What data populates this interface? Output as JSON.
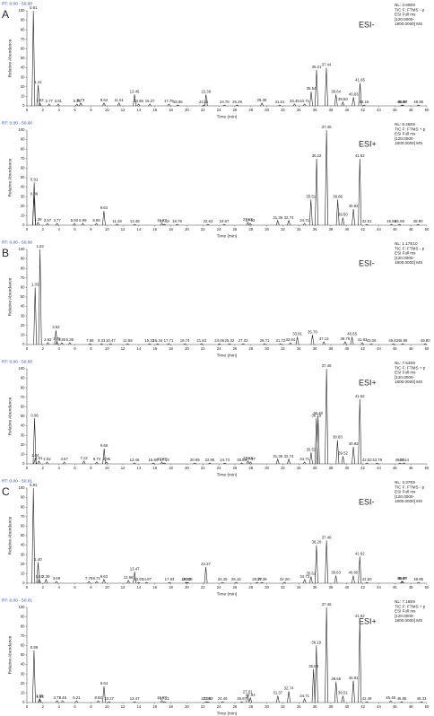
{
  "chart_data": [
    {
      "type": "line",
      "header": "RT: 0.00 - 50.00",
      "panel": "A",
      "mode": "ESI-",
      "info": [
        "NL: 3.60E9",
        "TIC F: FTMS - p",
        "ESI Full ms",
        "[120.0000-",
        "1800.0000]  MS"
      ],
      "y_label": "Relative Abundance",
      "x_label": "Time (min)",
      "color": "#222",
      "x": [
        0.81,
        1.41,
        1.62,
        2.77,
        3.91,
        6.25,
        6.73,
        9.64,
        11.51,
        13.46,
        13.96,
        15.37,
        17.75,
        18.86,
        22.11,
        22.39,
        24.7,
        26.29,
        29.38,
        31.61,
        33.45,
        34.71,
        35.54,
        36.21,
        37.44,
        38.64,
        39.5,
        40.83,
        41.65,
        42.16,
        46.88,
        46.97,
        48.95
      ],
      "values": [
        100,
        22,
        3,
        2,
        2,
        2,
        3,
        3,
        3,
        12,
        2,
        2,
        2,
        1,
        1,
        12,
        1,
        1,
        3,
        1,
        2,
        2,
        15,
        38,
        40,
        12,
        4,
        9,
        24,
        1,
        1,
        1,
        1
      ],
      "peak_labels": [
        "0.81",
        "1.41",
        "1.62",
        "2.77",
        "3.91",
        "6.25",
        "6.73",
        "9.64",
        "11.51",
        "13.46",
        "13.96",
        "15.37",
        "17.75",
        "18.86",
        "22.11",
        "22.39",
        "24.70",
        "26.29",
        "29.38",
        "31.61",
        "33.45",
        "34.71",
        "35.54",
        "36.21",
        "37.44",
        "38.64",
        "39.50",
        "40.83",
        "41.65",
        "42.16",
        "46.88",
        "46.97",
        "48.95"
      ],
      "xlim": [
        0,
        50
      ],
      "ylim": [
        0,
        100
      ],
      "xticks": [
        0,
        2,
        4,
        6,
        8,
        10,
        12,
        14,
        16,
        18,
        20,
        22,
        24,
        26,
        28,
        30,
        32,
        34,
        36,
        38,
        40,
        42,
        44,
        46,
        48,
        50
      ],
      "yticks": [
        0,
        10,
        20,
        30,
        40,
        50,
        60,
        70,
        80,
        90,
        100
      ]
    },
    {
      "type": "line",
      "header": "RT: 0.00 - 50.00",
      "mode": "ESI+",
      "info": [
        "NL: 8.46E9",
        "TIC F: FTMS + p",
        "ESI Full ms",
        "[120.0000-",
        "1800.0000]  MS"
      ],
      "y_label": "Relative Abundance",
      "x_label": "Time (min)",
      "color": "#222",
      "x": [
        0.91,
        0.89,
        1.39,
        2.57,
        3.77,
        5.93,
        6.99,
        8.69,
        9.63,
        11.28,
        13.48,
        16.87,
        17.19,
        18.78,
        22.63,
        24.67,
        27.62,
        27.92,
        31.36,
        32.74,
        34.71,
        35.51,
        36.22,
        37.46,
        38.86,
        39.5,
        40.82,
        41.62,
        42.51,
        45.58,
        46.58,
        48.9
      ],
      "values": [
        45,
        30,
        3,
        2,
        2,
        2,
        2,
        2,
        15,
        1,
        1,
        2,
        1,
        1,
        1,
        1,
        3,
        2,
        5,
        5,
        2,
        27,
        70,
        100,
        27,
        8,
        17,
        70,
        1,
        1,
        1,
        1
      ],
      "peak_labels": [
        "0.91",
        "0.89",
        "1.39",
        "2.57",
        "3.77",
        "5.93",
        "6.99",
        "8.69",
        "9.63",
        "11.28",
        "13.48",
        "16.87",
        "17.19",
        "18.78",
        "22.63",
        "24.67",
        "27.62",
        "27.92",
        "31.36",
        "32.74",
        "34.71",
        "35.51",
        "36.22",
        "37.46",
        "38.86",
        "39.50",
        "40.82",
        "41.62",
        "42.51",
        "45.58",
        "46.58",
        "48.90"
      ],
      "xlim": [
        0,
        50
      ],
      "ylim": [
        0,
        100
      ],
      "xticks": [
        0,
        2,
        4,
        6,
        8,
        10,
        12,
        14,
        16,
        18,
        20,
        22,
        24,
        26,
        28,
        30,
        32,
        34,
        36,
        38,
        40,
        42,
        44,
        46,
        48,
        50
      ],
      "yticks": [
        0,
        10,
        20,
        30,
        40,
        50,
        60,
        70,
        80,
        90,
        100
      ]
    },
    {
      "type": "line",
      "header": "RT: 0.00 - 50.00",
      "panel": "B",
      "mode": "ESI-",
      "info": [
        "NL: 1.17E10",
        "TIC F: FTMS - p",
        "ESI Full ms",
        "[120.0000-",
        "1800.0000]  MS"
      ],
      "y_label": "Relative Abundance",
      "x_label": "Time (min)",
      "color": "#222",
      "x": [
        1.64,
        1.03,
        3.63,
        2.62,
        3.75,
        4.36,
        5.36,
        7.88,
        9.33,
        10.47,
        12.58,
        15.32,
        16.34,
        17.71,
        19.74,
        21.83,
        24.06,
        25.32,
        27.03,
        29.71,
        31.72,
        32.94,
        33.81,
        35.7,
        37.13,
        39.79,
        40.65,
        41.93,
        43.06,
        45.82,
        46.98,
        49.8
      ],
      "values": [
        100,
        60,
        15,
        2,
        3,
        2,
        2,
        1,
        1,
        1,
        1,
        1,
        1,
        1,
        1,
        1,
        1,
        1,
        1,
        1,
        1,
        2,
        8,
        10,
        3,
        3,
        8,
        2,
        1,
        1,
        1,
        1
      ],
      "peak_labels": [
        "1.64",
        "1.03",
        "3.63",
        "2.62",
        "3.75",
        "4.36",
        "5.36",
        "7.88",
        "9.33",
        "10.47",
        "12.58",
        "15.32",
        "16.34",
        "17.71",
        "19.74",
        "21.83",
        "24.06",
        "25.32",
        "27.03",
        "29.71",
        "31.72",
        "32.94",
        "33.81",
        "35.70",
        "37.13",
        "39.79",
        "40.65",
        "41.93",
        "43.06",
        "45.82",
        "46.98",
        "49.80"
      ],
      "xlim": [
        0,
        50
      ],
      "ylim": [
        0,
        100
      ],
      "xticks": [
        0,
        2,
        4,
        6,
        8,
        10,
        12,
        14,
        16,
        18,
        20,
        22,
        24,
        26,
        28,
        30,
        32,
        34,
        36,
        38,
        40,
        42,
        44,
        46,
        48,
        50
      ],
      "yticks": [
        0,
        10,
        20,
        30,
        40,
        50,
        60,
        70,
        80,
        90,
        100
      ]
    },
    {
      "type": "line",
      "header": "RT: 0.00 - 50.00",
      "mode": "ESI+",
      "info": [
        "NL: 7.54E9",
        "TIC F: FTMS + p",
        "ESI Full ms",
        "[120.0000-",
        "1800.0000]  MS"
      ],
      "y_label": "Relative Abundance",
      "x_label": "Time (min)",
      "color": "#222",
      "x": [
        0.96,
        1.04,
        1.51,
        2.52,
        4.67,
        7.12,
        8.74,
        9.66,
        9.96,
        13.45,
        15.8,
        16.87,
        17.19,
        20.99,
        22.85,
        24.74,
        26.86,
        27.64,
        27.97,
        31.36,
        32.74,
        34.71,
        35.53,
        36.4,
        36.19,
        37.46,
        38.83,
        39.52,
        40.82,
        41.62,
        42.52,
        43.79,
        46.64,
        47.14
      ],
      "values": [
        48,
        6,
        3,
        2,
        2,
        3,
        2,
        16,
        2,
        1,
        1,
        2,
        1,
        1,
        1,
        1,
        1,
        3,
        2,
        5,
        5,
        2,
        12,
        50,
        48,
        100,
        25,
        8,
        18,
        68,
        1,
        1,
        1,
        1
      ],
      "peak_labels": [
        "0.96",
        "1.04",
        "1.51",
        "2.52",
        "4.67",
        "7.12",
        "8.74",
        "9.66",
        "9.96",
        "13.45",
        "15.80",
        "16.87",
        "17.19",
        "20.99",
        "22.85",
        "24.74",
        "26.86",
        "27.64",
        "27.97",
        "31.36",
        "32.74",
        "34.71",
        "35.53",
        "36.40",
        "36.19",
        "37.46",
        "38.83",
        "39.52",
        "40.82",
        "41.62",
        "42.52",
        "43.79",
        "46.64",
        "47.14"
      ],
      "xlim": [
        0,
        50
      ],
      "ylim": [
        0,
        100
      ],
      "xticks": [
        0,
        2,
        4,
        6,
        8,
        10,
        12,
        14,
        16,
        18,
        20,
        22,
        24,
        26,
        28,
        30,
        32,
        34,
        36,
        38,
        40,
        42,
        44,
        46,
        48,
        50
      ],
      "yticks": [
        0,
        10,
        20,
        30,
        40,
        50,
        60,
        70,
        80,
        90,
        100
      ]
    },
    {
      "type": "line",
      "header": "RT: 0.00 - 50.01",
      "panel": "C",
      "mode": "ESI-",
      "info": [
        "NL: 3.37E9",
        "TIC F: FTMS - p",
        "ESI Full ms",
        "[120.0000-",
        "1800.0000]  MS"
      ],
      "y_label": "Relative Abundance",
      "x_label": "Time (min)",
      "color": "#222",
      "x": [
        0.81,
        1.4,
        1.53,
        2.39,
        3.69,
        7.75,
        8.71,
        9.63,
        12.68,
        13.47,
        13.97,
        14.97,
        17.83,
        19.92,
        20.09,
        22.37,
        24.45,
        26.15,
        28.77,
        29.39,
        32.2,
        34.73,
        35.52,
        36.2,
        37.46,
        38.63,
        40.8,
        41.62,
        42.5,
        46.87,
        46.97,
        48.95
      ],
      "values": [
        100,
        22,
        4,
        4,
        2,
        2,
        2,
        4,
        3,
        12,
        1,
        1,
        1,
        1,
        1,
        17,
        1,
        1,
        1,
        1,
        1,
        4,
        7,
        40,
        45,
        8,
        8,
        28,
        1,
        2,
        2,
        1
      ],
      "peak_labels": [
        "0.81",
        "1.40",
        "1.53",
        "2.39",
        "3.69",
        "7.75",
        "8.71",
        "9.63",
        "12.68",
        "13.47",
        "13.97",
        "14.97",
        "17.83",
        "19.92",
        "20.09",
        "22.37",
        "24.45",
        "26.15",
        "28.77",
        "29.39",
        "32.20",
        "34.73",
        "35.52",
        "36.20",
        "37.46",
        "38.63",
        "40.80",
        "41.62",
        "42.50",
        "46.87",
        "46.97",
        "48.95"
      ],
      "xlim": [
        0,
        50
      ],
      "ylim": [
        0,
        100
      ],
      "xticks": [
        0,
        2,
        4,
        6,
        8,
        10,
        12,
        14,
        16,
        18,
        20,
        22,
        24,
        26,
        28,
        30,
        32,
        34,
        36,
        38,
        40,
        42,
        44,
        46,
        48,
        50
      ],
      "yticks": [
        0,
        10,
        20,
        30,
        40,
        50,
        60,
        70,
        80,
        90,
        100
      ]
    },
    {
      "type": "line",
      "header": "RT: 0.00 - 50.01",
      "mode": "ESI+",
      "info": [
        "NL: 7.16E9",
        "TIC F: FTMS + p",
        "ESI Full ms",
        "[120.0000-",
        "1800.0000]  MS"
      ],
      "y_label": "Relative Abundance",
      "x_label": "Time (min)",
      "color": "#222",
      "x": [
        0.89,
        1.59,
        1.64,
        3.77,
        4.46,
        6.21,
        8.93,
        9.64,
        10.27,
        13.47,
        16.87,
        17.21,
        22.39,
        22.63,
        24.46,
        26.87,
        27.61,
        27.94,
        31.37,
        32.74,
        34.71,
        35.83,
        36.19,
        37.46,
        38.65,
        39.51,
        40.81,
        41.62,
        42.49,
        45.48,
        46.86,
        49.33
      ],
      "values": [
        55,
        4,
        3,
        2,
        2,
        2,
        2,
        17,
        1,
        1,
        2,
        1,
        1,
        1,
        1,
        1,
        8,
        5,
        7,
        12,
        4,
        35,
        60,
        100,
        22,
        7,
        23,
        88,
        1,
        2,
        1,
        1
      ],
      "peak_labels": [
        "0.89",
        "1.59",
        "1.64",
        "3.77",
        "4.46",
        "6.21",
        "8.93",
        "9.64",
        "10.27",
        "13.47",
        "16.87",
        "17.21",
        "22.39",
        "22.63",
        "24.46",
        "26.87",
        "27.61",
        "27.94",
        "31.37",
        "32.74",
        "34.71",
        "35.83",
        "36.19",
        "37.46",
        "38.65",
        "39.51",
        "40.81",
        "41.62",
        "42.49",
        "45.48",
        "46.86",
        "49.33"
      ],
      "xlim": [
        0,
        50
      ],
      "ylim": [
        0,
        100
      ],
      "xticks": [
        0,
        2,
        4,
        6,
        8,
        10,
        12,
        14,
        16,
        18,
        20,
        22,
        24,
        26,
        28,
        30,
        32,
        34,
        36,
        38,
        40,
        42,
        44,
        46,
        48,
        50
      ],
      "yticks": [
        0,
        10,
        20,
        30,
        40,
        50,
        60,
        70,
        80,
        90,
        100
      ]
    }
  ]
}
